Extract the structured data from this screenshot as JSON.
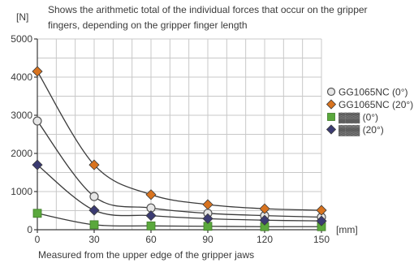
{
  "chart_data": {
    "type": "line",
    "title": "Shows the arithmetic total of the individual forces that occur on the gripper fingers, depending on the gripper finger length",
    "title_lines": [
      "Shows the arithmetic total of the individual forces that occur on the gripper",
      "fingers, depending on the gripper finger length"
    ],
    "ylabel": "[N]",
    "xlabel": "Measured from the upper edge of the gripper jaws",
    "x_unit": "[mm]",
    "xlim": [
      0,
      150
    ],
    "ylim": [
      0,
      5000
    ],
    "x_ticks": [
      "0",
      "30",
      "60",
      "90",
      "120",
      "150"
    ],
    "y_ticks": [
      "0",
      "1000",
      "2000",
      "3000",
      "4000",
      "5000"
    ],
    "grid": true,
    "legend_position": "right",
    "x": [
      0,
      30,
      60,
      90,
      120,
      150
    ],
    "series": [
      {
        "name": "GG1065NC (0°)",
        "marker": "circle",
        "color": "#e6e6e6",
        "values": [
          2850,
          870,
          570,
          430,
          370,
          330
        ]
      },
      {
        "name": "GG1065NC (20°)",
        "marker": "diamond",
        "color": "#d8731f",
        "values": [
          4150,
          1700,
          920,
          660,
          550,
          510
        ]
      },
      {
        "name": "▓▓▓ (0°)",
        "marker": "square",
        "color": "#5aa83c",
        "values": [
          430,
          130,
          100,
          90,
          80,
          80
        ]
      },
      {
        "name": "▓▓▓ (20°)",
        "marker": "diamond",
        "color": "#3b3b72",
        "values": [
          1700,
          510,
          370,
          290,
          250,
          230
        ]
      }
    ]
  }
}
